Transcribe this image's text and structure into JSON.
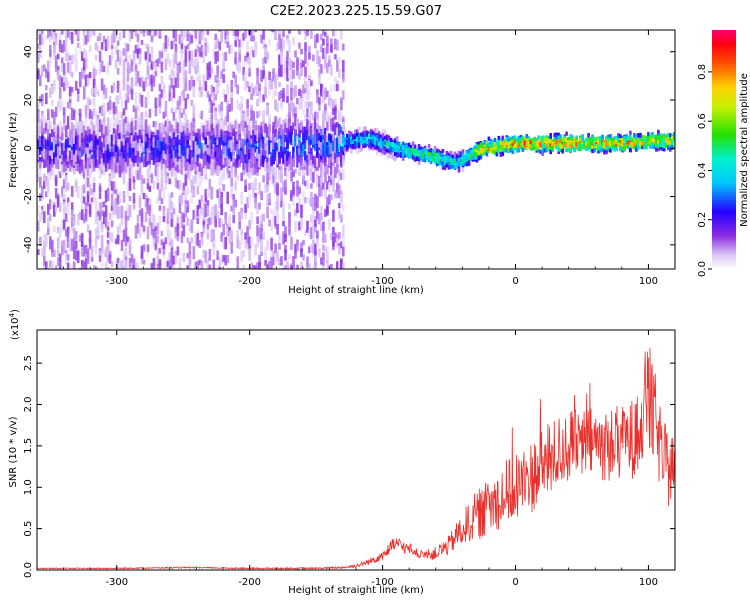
{
  "title": "C2E2.2023.225.15.59.G07",
  "chart_data": [
    {
      "type": "heatmap",
      "xlabel": "Height of straight line (km)",
      "ylabel": "Frequency (Hz)",
      "xlim": [
        -360,
        120
      ],
      "ylim": [
        -50,
        49
      ],
      "x_ticks": [
        -300,
        -200,
        -100,
        0,
        100
      ],
      "y_ticks": [
        -40,
        -20,
        0,
        20,
        40
      ],
      "colorbar": {
        "label": "Normalized spectral amplitude",
        "range": [
          0,
          0.97
        ],
        "ticks": [
          0.0,
          0.2,
          0.4,
          0.6,
          0.8
        ]
      },
      "ridge": {
        "x": [
          -360,
          -300,
          -200,
          -140,
          -110,
          -90,
          -75,
          -60,
          -45,
          -38,
          -25,
          -10,
          0,
          20,
          40,
          60,
          80,
          100,
          120
        ],
        "freq_hz": [
          0,
          0,
          0,
          2,
          4,
          0,
          -2,
          -4,
          -6,
          -4,
          0,
          1,
          2,
          2,
          2,
          2,
          2,
          3,
          3
        ],
        "peak_amplitude": [
          0.3,
          0.32,
          0.35,
          0.45,
          0.5,
          0.55,
          0.6,
          0.65,
          0.55,
          0.6,
          0.9,
          0.95,
          0.95,
          0.95,
          0.95,
          0.92,
          0.9,
          0.85,
          0.8
        ]
      }
    },
    {
      "type": "line",
      "xlabel": "Height of straight line (km)",
      "ylabel": "SNR (10 * v/v)",
      "y_multiplier": "(x10^4)",
      "y_multiplier_base": "(x10",
      "y_multiplier_exp": "4",
      "xlim": [
        -360,
        120
      ],
      "ylim": [
        0,
        2.9
      ],
      "x_ticks": [
        -300,
        -200,
        -100,
        0,
        100
      ],
      "y_ticks": [
        "0.0",
        "0.5",
        "1.0",
        "1.5",
        "2.0",
        "2.5"
      ],
      "series": [
        {
          "color": "#e8312c",
          "x": [
            -360,
            -300,
            -250,
            -200,
            -150,
            -130,
            -120,
            -110,
            -100,
            -90,
            -80,
            -70,
            -60,
            -50,
            -40,
            -30,
            -20,
            -10,
            0,
            10,
            20,
            30,
            40,
            50,
            60,
            70,
            80,
            90,
            95,
            100,
            105,
            110,
            115,
            120
          ],
          "values": [
            0.02,
            0.02,
            0.03,
            0.02,
            0.02,
            0.03,
            0.05,
            0.1,
            0.18,
            0.32,
            0.25,
            0.18,
            0.2,
            0.3,
            0.5,
            0.65,
            0.75,
            0.9,
            1.0,
            1.1,
            1.25,
            1.4,
            1.5,
            1.5,
            1.55,
            1.5,
            1.55,
            1.6,
            1.9,
            2.1,
            1.8,
            1.4,
            1.2,
            1.3
          ],
          "noise_amplitude": [
            0.005,
            0.006,
            0.008,
            0.008,
            0.01,
            0.012,
            0.02,
            0.04,
            0.06,
            0.1,
            0.06,
            0.05,
            0.08,
            0.12,
            0.2,
            0.3,
            0.35,
            0.4,
            0.45,
            0.45,
            0.45,
            0.45,
            0.45,
            0.45,
            0.45,
            0.45,
            0.45,
            0.5,
            0.6,
            0.7,
            0.6,
            0.5,
            0.45,
            0.4
          ]
        }
      ]
    }
  ]
}
